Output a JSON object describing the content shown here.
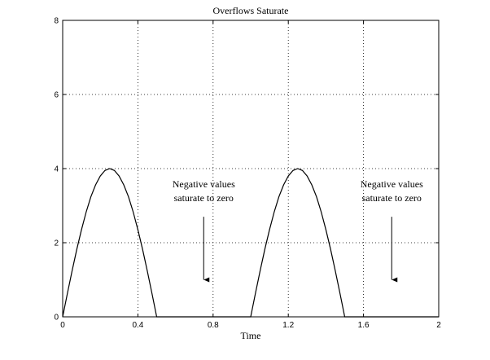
{
  "chart_data": {
    "type": "line",
    "title": "Overflows Saturate",
    "xlabel": "Time",
    "ylabel": "",
    "xlim": [
      0,
      2
    ],
    "ylim": [
      0,
      8
    ],
    "xticks": [
      0,
      0.4,
      0.8,
      1.2,
      1.6,
      2
    ],
    "xtick_labels": [
      "0",
      "0.4",
      "0.8",
      "1.2",
      "1.6",
      "2"
    ],
    "yticks": [
      0,
      2,
      4,
      6,
      8
    ],
    "ytick_labels": [
      "0",
      "2",
      "4",
      "6",
      "8"
    ],
    "grid": true,
    "series": [
      {
        "color": "#000000",
        "x": [
          0,
          0.025,
          0.05,
          0.075,
          0.1,
          0.125,
          0.15,
          0.175,
          0.2,
          0.225,
          0.25,
          0.275,
          0.3,
          0.325,
          0.35,
          0.375,
          0.4,
          0.425,
          0.45,
          0.475,
          0.5,
          0.55,
          0.6,
          0.65,
          0.7,
          0.75,
          0.8,
          0.85,
          0.9,
          0.95,
          1.0,
          1.025,
          1.05,
          1.075,
          1.1,
          1.125,
          1.15,
          1.175,
          1.2,
          1.225,
          1.25,
          1.275,
          1.3,
          1.325,
          1.35,
          1.375,
          1.4,
          1.425,
          1.45,
          1.475,
          1.5,
          1.55,
          1.6,
          1.65,
          1.7,
          1.75,
          1.8,
          1.85,
          1.9,
          1.95,
          2.0
        ],
        "y": [
          0,
          0.63,
          1.24,
          1.82,
          2.35,
          2.83,
          3.24,
          3.56,
          3.8,
          3.95,
          4.0,
          3.95,
          3.8,
          3.56,
          3.24,
          2.83,
          2.35,
          1.82,
          1.24,
          0.63,
          0,
          0,
          0,
          0,
          0,
          0,
          0,
          0,
          0,
          0,
          0,
          0.63,
          1.24,
          1.82,
          2.35,
          2.83,
          3.24,
          3.56,
          3.8,
          3.95,
          4.0,
          3.95,
          3.8,
          3.56,
          3.24,
          2.83,
          2.35,
          1.82,
          1.24,
          0.63,
          0,
          0,
          0,
          0,
          0,
          0,
          0,
          0,
          0,
          0,
          0
        ]
      }
    ],
    "annotations": [
      {
        "lines": [
          "Negative values",
          "saturate to zero"
        ],
        "x": 0.75,
        "y": 3.5,
        "arrow_from": 2.7,
        "arrow_to": 1.0
      },
      {
        "lines": [
          "Negative values",
          "saturate to zero"
        ],
        "x": 1.75,
        "y": 3.5,
        "arrow_from": 2.7,
        "arrow_to": 1.0
      }
    ]
  }
}
